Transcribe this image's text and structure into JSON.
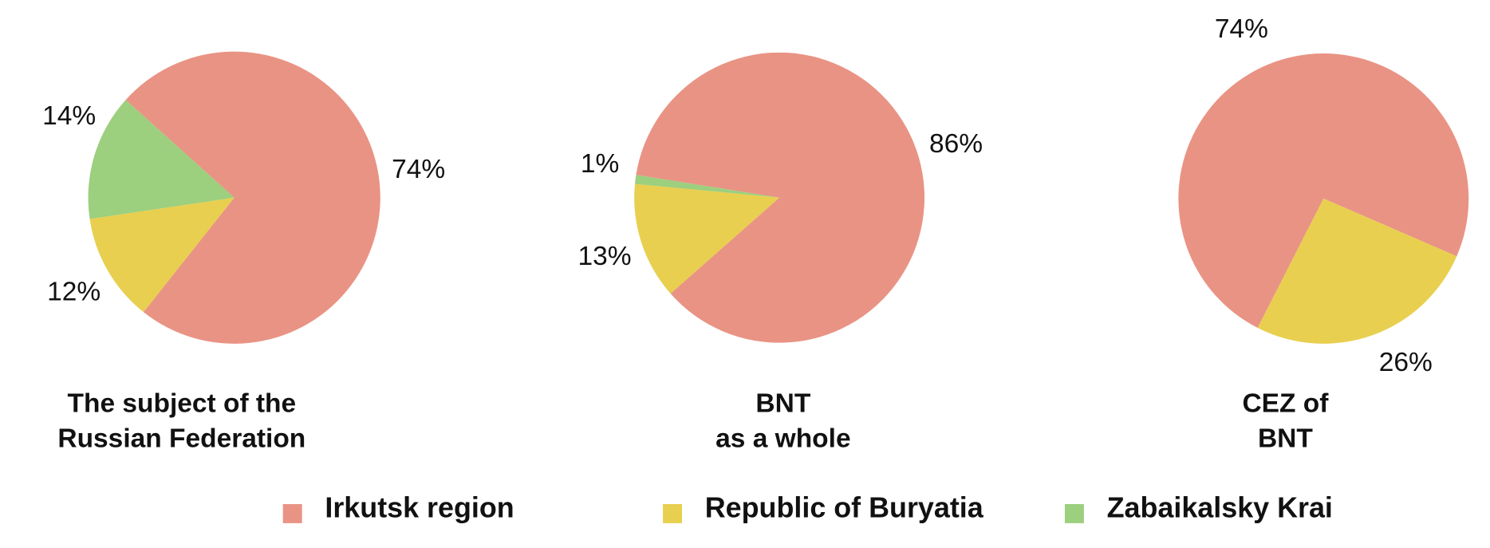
{
  "chart_data": [
    {
      "type": "pie",
      "title": [
        "The subject of the",
        "Russian Federation"
      ],
      "values": [
        74,
        12,
        14
      ],
      "value_labels": [
        "74%",
        "12%",
        "14%"
      ],
      "colors": [
        "#e99384",
        "#e8cf4f",
        "#9ccf7e"
      ]
    },
    {
      "type": "pie",
      "title": [
        "BNT",
        "as a whole"
      ],
      "values": [
        86,
        13,
        1
      ],
      "value_labels": [
        "86%",
        "13%",
        "1%"
      ],
      "colors": [
        "#e99384",
        "#e8cf4f",
        "#9ccf7e"
      ]
    },
    {
      "type": "pie",
      "title": [
        "CEZ of",
        "BNT"
      ],
      "values": [
        74,
        26
      ],
      "value_labels": [
        "74%",
        "26%"
      ],
      "colors": [
        "#e99384",
        "#e8cf4f"
      ]
    }
  ],
  "legend": {
    "categories": [
      "Irkutsk region",
      "Republic of Buryatia",
      "Zabaikalsky Krai"
    ],
    "colors": [
      "#e99384",
      "#e8cf4f",
      "#9ccf7e"
    ]
  }
}
